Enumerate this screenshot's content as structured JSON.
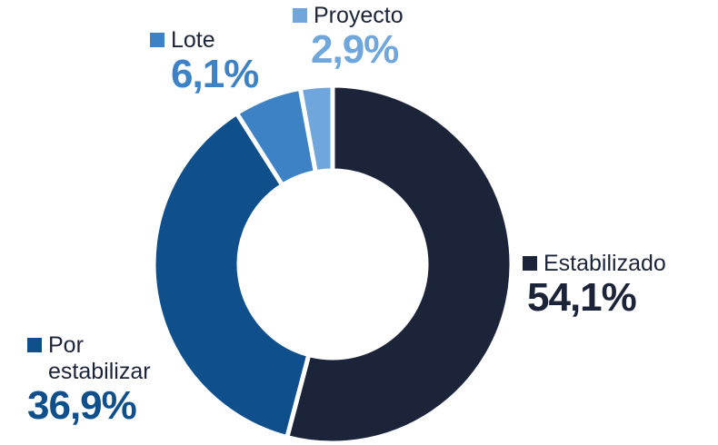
{
  "chart_data": {
    "type": "pie",
    "categories": [
      "Estabilizado",
      "Por estabilizar",
      "Lote",
      "Proyecto"
    ],
    "values": [
      54.1,
      36.9,
      6.1,
      2.9
    ],
    "value_labels": [
      "54,1%",
      "36,9%",
      "6,1%",
      "2,9%"
    ],
    "colors": [
      "#1b2438",
      "#0e4f8c",
      "#3e82c6",
      "#6fa6dc"
    ]
  }
}
